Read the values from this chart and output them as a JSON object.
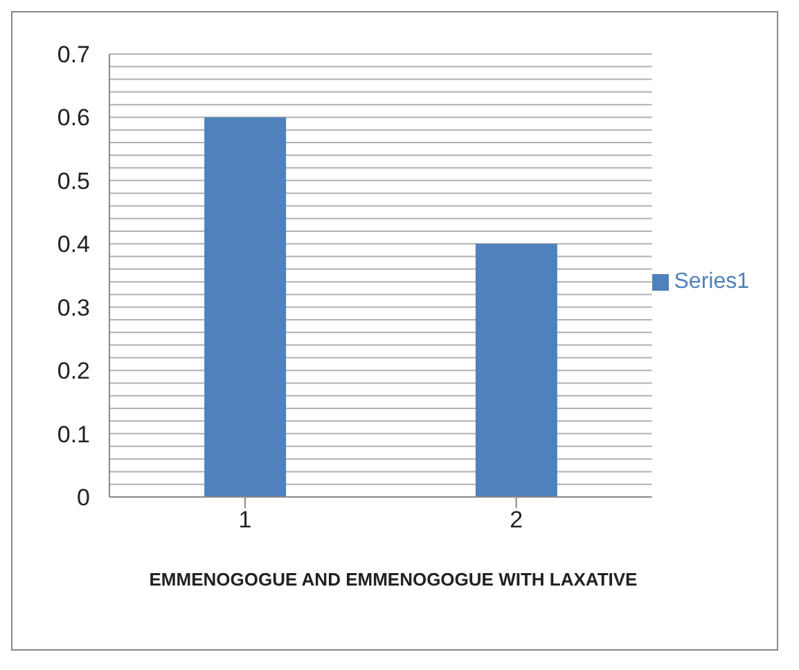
{
  "chart_data": {
    "type": "bar",
    "xlabel": "EMMENOGOGUE AND EMMENOGOGUE WITH LAXATIVE",
    "categories": [
      "1",
      "2"
    ],
    "series": [
      {
        "name": "Series1",
        "color": "#4f81bd",
        "values": [
          0.6,
          0.4
        ]
      }
    ],
    "ylim": [
      0,
      0.7
    ],
    "yticks": [
      0,
      {
        "value": 0.02,
        "label": null
      },
      {
        "value": 0.04,
        "label": null
      },
      {
        "value": 0.06,
        "label": null
      },
      {
        "value": 0.08,
        "label": null
      },
      0.1,
      {
        "value": 0.12,
        "label": null
      },
      {
        "value": 0.14,
        "label": null
      },
      {
        "value": 0.16,
        "label": null
      },
      {
        "value": 0.18,
        "label": null
      },
      0.2,
      {
        "value": 0.22,
        "label": null
      },
      {
        "value": 0.24,
        "label": null
      },
      {
        "value": 0.26,
        "label": null
      },
      {
        "value": 0.28,
        "label": null
      },
      0.3,
      {
        "value": 0.32,
        "label": null
      },
      {
        "value": 0.34,
        "label": null
      },
      {
        "value": 0.36,
        "label": null
      },
      {
        "value": 0.38,
        "label": null
      },
      0.4,
      {
        "value": 0.42,
        "label": null
      },
      {
        "value": 0.44,
        "label": null
      },
      {
        "value": 0.46,
        "label": null
      },
      {
        "value": 0.48,
        "label": null
      },
      0.5,
      {
        "value": 0.52,
        "label": null
      },
      {
        "value": 0.54,
        "label": null
      },
      {
        "value": 0.56,
        "label": null
      },
      {
        "value": 0.58,
        "label": null
      },
      0.6,
      {
        "value": 0.62,
        "label": null
      },
      {
        "value": 0.64,
        "label": null
      },
      {
        "value": 0.66,
        "label": null
      },
      {
        "value": 0.68,
        "label": null
      },
      0.7
    ],
    "grid": true,
    "legend": "right"
  }
}
